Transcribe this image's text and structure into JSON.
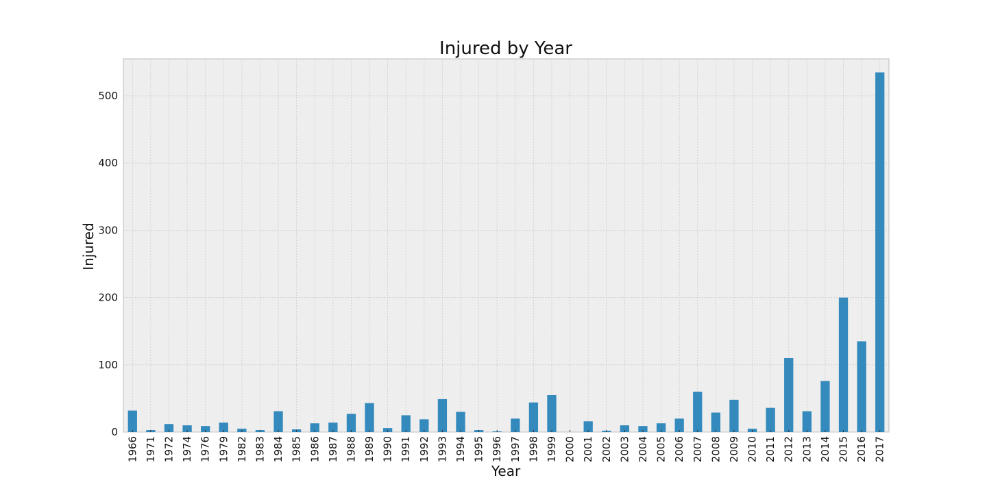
{
  "chart_data": {
    "type": "bar",
    "title": "Injured by Year",
    "xlabel": "Year",
    "ylabel": "Injured",
    "ylim": [
      0,
      555
    ],
    "yticks": [
      0,
      100,
      200,
      300,
      400,
      500
    ],
    "grid": true,
    "legend": "none",
    "colors": {
      "bar": "#348ABD",
      "plot_bg": "#EEEEEE",
      "grid": "#CBCBCB"
    },
    "categories": [
      "1966",
      "1971",
      "1972",
      "1974",
      "1976",
      "1979",
      "1982",
      "1983",
      "1984",
      "1985",
      "1986",
      "1987",
      "1988",
      "1989",
      "1990",
      "1991",
      "1992",
      "1993",
      "1994",
      "1995",
      "1996",
      "1997",
      "1998",
      "1999",
      "2000",
      "2001",
      "2002",
      "2003",
      "2004",
      "2005",
      "2006",
      "2007",
      "2008",
      "2009",
      "2010",
      "2011",
      "2012",
      "2013",
      "2014",
      "2015",
      "2016",
      "2017"
    ],
    "values": [
      32,
      3,
      12,
      10,
      9,
      14,
      5,
      3,
      31,
      4,
      13,
      14,
      27,
      43,
      6,
      25,
      19,
      49,
      30,
      3,
      1,
      20,
      44,
      55,
      0,
      16,
      2,
      10,
      9,
      13,
      20,
      60,
      29,
      48,
      5,
      36,
      110,
      31,
      76,
      200,
      135,
      535
    ]
  }
}
